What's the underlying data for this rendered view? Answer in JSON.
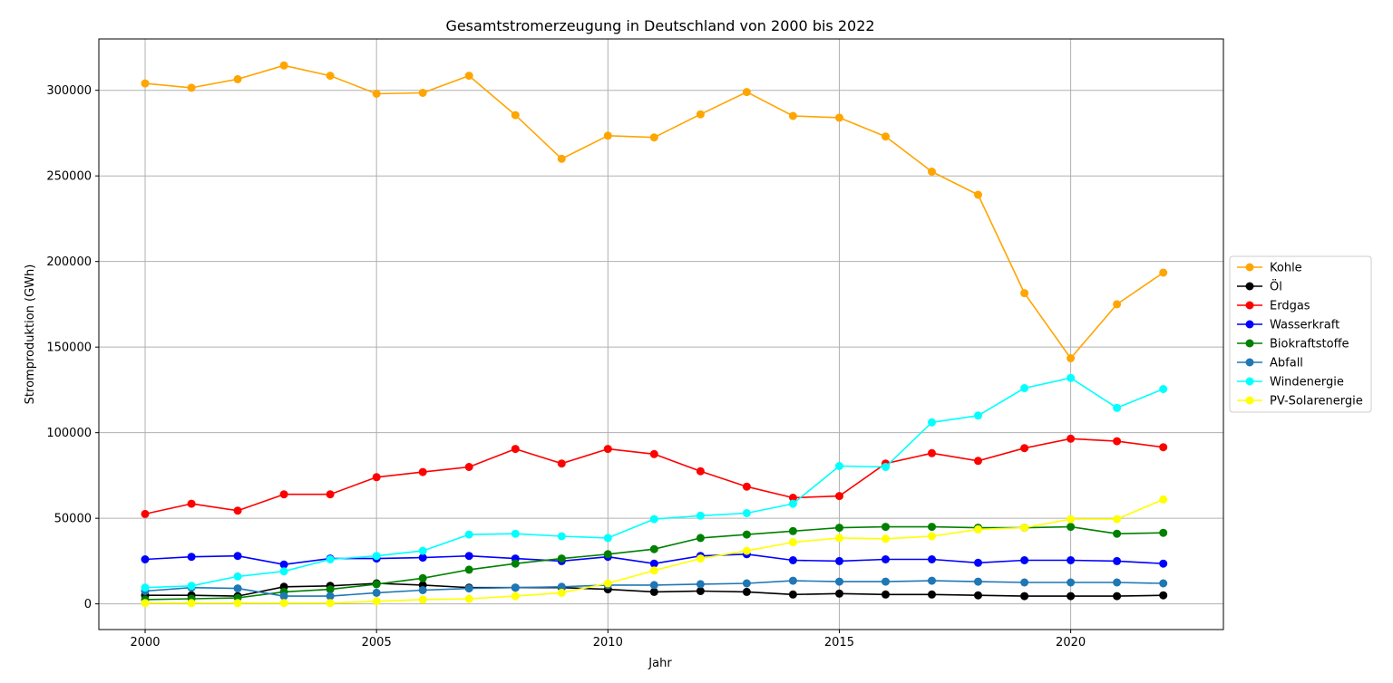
{
  "chart_data": {
    "type": "line",
    "title": "Gesamtstromerzeugung in Deutschland von 2000 bis 2022",
    "xlabel": "Jahr",
    "ylabel": "Stromproduktion (GWh)",
    "x": [
      2000,
      2001,
      2002,
      2003,
      2004,
      2005,
      2006,
      2007,
      2008,
      2009,
      2010,
      2011,
      2012,
      2013,
      2014,
      2015,
      2016,
      2017,
      2018,
      2019,
      2020,
      2021,
      2022
    ],
    "xlim": [
      1999,
      2023.3
    ],
    "ylim": [
      -15000,
      330000
    ],
    "xticks": [
      2000,
      2005,
      2010,
      2015,
      2020
    ],
    "xtick_labels": [
      "2000",
      "2005",
      "2010",
      "2015",
      "2020"
    ],
    "yticks": [
      0,
      50000,
      100000,
      150000,
      200000,
      250000,
      300000
    ],
    "ytick_labels": [
      "0",
      "50000",
      "100000",
      "150000",
      "200000",
      "250000",
      "300000"
    ],
    "grid": true,
    "legend_position": "right-outside",
    "series": [
      {
        "name": "Kohle",
        "color": "#ffa500",
        "values": [
          304000,
          301500,
          306500,
          314500,
          308500,
          298000,
          298500,
          308500,
          285500,
          260000,
          273500,
          272500,
          286000,
          299000,
          285000,
          284000,
          273000,
          252500,
          239000,
          181500,
          143500,
          175000,
          193500
        ]
      },
      {
        "name": "Öl",
        "color": "#000000",
        "values": [
          5000,
          5000,
          4500,
          10000,
          10500,
          12000,
          11000,
          9500,
          9500,
          9500,
          8500,
          7000,
          7500,
          7000,
          5500,
          6000,
          5500,
          5500,
          5000,
          4500,
          4500,
          4500,
          5000
        ]
      },
      {
        "name": "Erdgas",
        "color": "#ff0000",
        "values": [
          52500,
          58500,
          54500,
          64000,
          64000,
          74000,
          77000,
          80000,
          90500,
          82000,
          90500,
          87500,
          77500,
          68500,
          62000,
          63000,
          82000,
          88000,
          83500,
          91000,
          96500,
          95000,
          91500
        ]
      },
      {
        "name": "Wasserkraft",
        "color": "#0000ff",
        "values": [
          26000,
          27500,
          28000,
          23000,
          26500,
          26500,
          27000,
          28000,
          26500,
          25000,
          27500,
          23500,
          28000,
          29000,
          25500,
          25000,
          26000,
          26000,
          24000,
          25500,
          25500,
          25000,
          23500
        ]
      },
      {
        "name": "Biokraftstoffe",
        "color": "#008000",
        "values": [
          2500,
          3000,
          3500,
          7000,
          8500,
          11500,
          15000,
          20000,
          23500,
          26500,
          29000,
          32000,
          38500,
          40500,
          42500,
          44500,
          45000,
          45000,
          44500,
          44500,
          45000,
          41000,
          41500
        ]
      },
      {
        "name": "Abfall",
        "color": "#1f77b4",
        "values": [
          7500,
          9500,
          9000,
          4500,
          4500,
          6500,
          8000,
          9000,
          9500,
          10000,
          11000,
          11000,
          11500,
          12000,
          13500,
          13000,
          13000,
          13500,
          13000,
          12500,
          12500,
          12500,
          12000
        ]
      },
      {
        "name": "Windenergie",
        "color": "#00ffff",
        "values": [
          9500,
          10500,
          16000,
          19000,
          26000,
          28000,
          31000,
          40500,
          41000,
          39500,
          38500,
          49500,
          51500,
          53000,
          58500,
          80500,
          80000,
          106000,
          110000,
          126000,
          132000,
          114500,
          125500
        ]
      },
      {
        "name": "PV-Solarenergie",
        "color": "#ffff00",
        "values": [
          500,
          500,
          500,
          500,
          500,
          1500,
          2500,
          3000,
          4500,
          6500,
          12000,
          19500,
          26500,
          31000,
          36000,
          38500,
          38000,
          39500,
          43500,
          44500,
          49500,
          49500,
          61000
        ]
      }
    ]
  }
}
